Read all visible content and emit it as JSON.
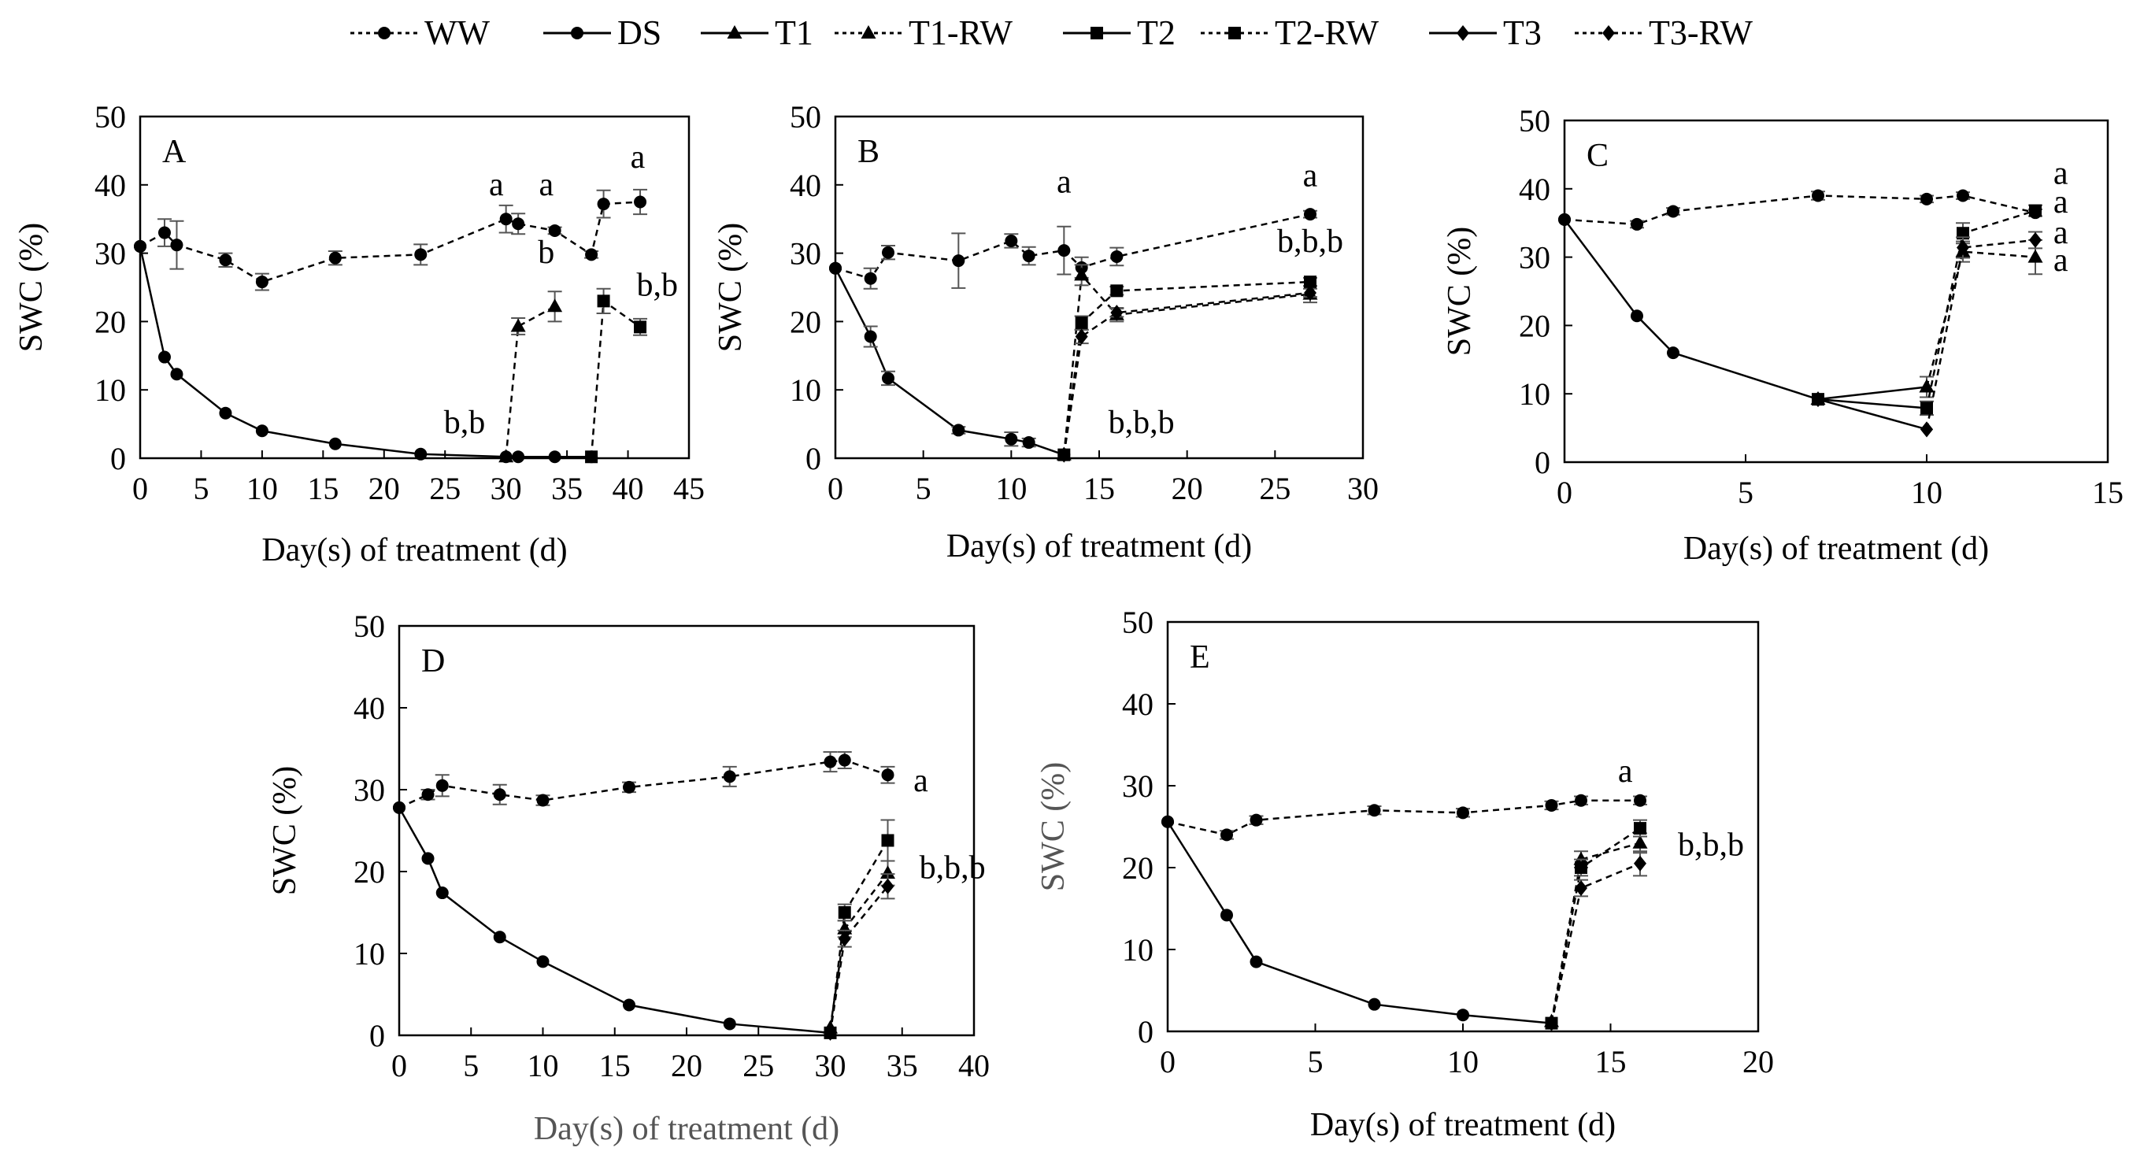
{
  "legend": [
    {
      "name": "WW",
      "style": "dashed",
      "marker": "circle"
    },
    {
      "name": "DS",
      "style": "solid",
      "marker": "circle"
    },
    {
      "name": "T1",
      "style": "solid",
      "marker": "triangle"
    },
    {
      "name": "T1-RW",
      "style": "dashed",
      "marker": "triangle"
    },
    {
      "name": "T2",
      "style": "solid",
      "marker": "square"
    },
    {
      "name": "T2-RW",
      "style": "dashed",
      "marker": "square"
    },
    {
      "name": "T3",
      "style": "solid",
      "marker": "diamond"
    },
    {
      "name": "T3-RW",
      "style": "dashed",
      "marker": "diamond"
    }
  ],
  "chart_data": [
    {
      "type": "line",
      "panel": "A",
      "xlabel": "Day(s) of treatment (d)",
      "ylabel": "SWC (%)",
      "xlim": [
        0,
        45
      ],
      "xticks": [
        0,
        5,
        10,
        15,
        20,
        25,
        30,
        35,
        40,
        45
      ],
      "ylim": [
        0,
        50
      ],
      "yticks": [
        0,
        10,
        20,
        30,
        40,
        50
      ],
      "series": [
        {
          "name": "WW",
          "style": "dashed",
          "marker": "circle",
          "points": [
            [
              0,
              31
            ],
            [
              2,
              33
            ],
            [
              3,
              31.2
            ],
            [
              7,
              29
            ],
            [
              10,
              25.8
            ],
            [
              16,
              29.3
            ],
            [
              23,
              29.8
            ],
            [
              30,
              35
            ],
            [
              31,
              34.3
            ],
            [
              34,
              33.3
            ],
            [
              37,
              29.8
            ],
            [
              38,
              37.2
            ],
            [
              41,
              37.5
            ]
          ],
          "errors": [
            0,
            2,
            3.5,
            1,
            1.2,
            1,
            1.5,
            2,
            1.5,
            0.5,
            0.5,
            2,
            1.8
          ]
        },
        {
          "name": "DS",
          "style": "solid",
          "marker": "circle",
          "points": [
            [
              0,
              31
            ],
            [
              2,
              14.8
            ],
            [
              3,
              12.3
            ],
            [
              7,
              6.6
            ],
            [
              10,
              4
            ],
            [
              16,
              2.1
            ],
            [
              23,
              0.6
            ],
            [
              30,
              0.2
            ],
            [
              31,
              0.2
            ],
            [
              34,
              0.2
            ],
            [
              37,
              0.2
            ]
          ]
        },
        {
          "name": "T1-RW",
          "style": "dashed",
          "marker": "triangle",
          "points": [
            [
              30,
              0.2
            ],
            [
              31,
              19.3
            ],
            [
              34,
              22.2
            ]
          ],
          "errors": [
            0,
            1.2,
            2.2
          ]
        },
        {
          "name": "T2-RW",
          "style": "dashed",
          "marker": "square",
          "points": [
            [
              37,
              0.2
            ],
            [
              38,
              23
            ],
            [
              41,
              19.2
            ]
          ],
          "errors": [
            0,
            1.8,
            1.2
          ]
        }
      ],
      "annotations": [
        {
          "text": "a",
          "x": 29.2,
          "y": 38.5
        },
        {
          "text": "a",
          "x": 33.3,
          "y": 38.5
        },
        {
          "text": "a",
          "x": 40.8,
          "y": 42.5
        },
        {
          "text": "b",
          "x": 33.3,
          "y": 28.6
        },
        {
          "text": "b,b",
          "x": 26.6,
          "y": 3.7
        },
        {
          "text": "b,b",
          "x": 42.4,
          "y": 23.8
        }
      ]
    },
    {
      "type": "line",
      "panel": "B",
      "xlabel": "Day(s) of treatment (d)",
      "ylabel": "SWC (%)",
      "xlim": [
        0,
        30
      ],
      "xticks": [
        0,
        5,
        10,
        15,
        20,
        25,
        30
      ],
      "ylim": [
        0,
        50
      ],
      "yticks": [
        0,
        10,
        20,
        30,
        40,
        50
      ],
      "series": [
        {
          "name": "WW",
          "style": "dashed",
          "marker": "circle",
          "points": [
            [
              0,
              27.8
            ],
            [
              2,
              26.3
            ],
            [
              3,
              30.1
            ],
            [
              7,
              28.9
            ],
            [
              10,
              31.8
            ],
            [
              11,
              29.6
            ],
            [
              13,
              30.4
            ],
            [
              14,
              27.9
            ],
            [
              16,
              29.5
            ],
            [
              27,
              35.7
            ]
          ],
          "errors": [
            0,
            1.5,
            1,
            4,
            1,
            1.3,
            3.5,
            1.5,
            1.3,
            0.5
          ]
        },
        {
          "name": "DS",
          "style": "solid",
          "marker": "circle",
          "points": [
            [
              0,
              27.8
            ],
            [
              2,
              17.8
            ],
            [
              3,
              11.7
            ],
            [
              7,
              4.1
            ],
            [
              10,
              2.8
            ],
            [
              11,
              2.3
            ],
            [
              13,
              0.5
            ]
          ],
          "errors": [
            0,
            1.5,
            1,
            0.5,
            1,
            0.6,
            0
          ]
        },
        {
          "name": "T1-RW",
          "style": "dashed",
          "marker": "triangle",
          "points": [
            [
              13,
              0.5
            ],
            [
              14,
              26.8
            ],
            [
              16,
              21
            ],
            [
              27,
              24
            ]
          ],
          "errors": [
            0,
            1.5,
            1,
            1.2
          ]
        },
        {
          "name": "T2-RW",
          "style": "dashed",
          "marker": "square",
          "points": [
            [
              13,
              0.5
            ],
            [
              14,
              19.8
            ],
            [
              16,
              24.5
            ],
            [
              27,
              25.8
            ]
          ],
          "errors": [
            0,
            1,
            0.6,
            0.6
          ]
        },
        {
          "name": "T3-RW",
          "style": "dashed",
          "marker": "diamond",
          "points": [
            [
              13,
              0.5
            ],
            [
              14,
              17.8
            ],
            [
              16,
              21.3
            ],
            [
              27,
              24.2
            ]
          ],
          "errors": [
            0,
            1,
            0.6,
            0.6
          ]
        }
      ],
      "annotations": [
        {
          "text": "a",
          "x": 13,
          "y": 38.9
        },
        {
          "text": "a",
          "x": 27,
          "y": 39.8
        },
        {
          "text": "b,b,b",
          "x": 27,
          "y": 30.2
        },
        {
          "text": "b,b,b",
          "x": 17.4,
          "y": 3.7
        }
      ]
    },
    {
      "type": "line",
      "panel": "C",
      "xlabel": "Day(s) of treatment (d)",
      "ylabel": "SWC (%)",
      "xlim": [
        0,
        15
      ],
      "xticks": [
        0,
        5,
        10,
        15
      ],
      "ylim": [
        0,
        50
      ],
      "yticks": [
        0,
        10,
        20,
        30,
        40,
        50
      ],
      "series": [
        {
          "name": "WW",
          "style": "dashed",
          "marker": "circle",
          "points": [
            [
              0,
              35.5
            ],
            [
              2,
              34.8
            ],
            [
              3,
              36.7
            ],
            [
              7,
              39
            ],
            [
              10,
              38.5
            ],
            [
              11,
              39
            ],
            [
              13,
              36.5
            ]
          ],
          "errors": [
            0,
            0.5,
            0.5,
            0.6,
            0.5,
            0.5,
            0.5
          ]
        },
        {
          "name": "DS",
          "style": "solid",
          "marker": "circle",
          "points": [
            [
              0,
              35.5
            ],
            [
              2,
              21.4
            ],
            [
              3,
              16
            ],
            [
              7,
              9.2
            ]
          ]
        },
        {
          "name": "T1",
          "style": "solid",
          "marker": "triangle",
          "points": [
            [
              7,
              9.2
            ],
            [
              10,
              11
            ]
          ],
          "errors": [
            0,
            1.5
          ]
        },
        {
          "name": "T1-RW",
          "style": "dashed",
          "marker": "triangle",
          "points": [
            [
              10,
              11
            ],
            [
              11,
              30.8
            ],
            [
              13,
              30
            ]
          ],
          "errors": [
            0,
            1.5,
            2.5
          ]
        },
        {
          "name": "T2",
          "style": "solid",
          "marker": "square",
          "points": [
            [
              7,
              9.2
            ],
            [
              10,
              7.9
            ]
          ],
          "errors": [
            0,
            1
          ]
        },
        {
          "name": "T2-RW",
          "style": "dashed",
          "marker": "square",
          "points": [
            [
              10,
              7.9
            ],
            [
              11,
              33.5
            ],
            [
              13,
              36.8
            ]
          ],
          "errors": [
            0,
            1.5,
            0.8
          ]
        },
        {
          "name": "T3",
          "style": "solid",
          "marker": "diamond",
          "points": [
            [
              7,
              9.2
            ],
            [
              10,
              4.8
            ]
          ]
        },
        {
          "name": "T3-RW",
          "style": "dashed",
          "marker": "diamond",
          "points": [
            [
              10,
              4.8
            ],
            [
              11,
              31.4
            ],
            [
              13,
              32.5
            ]
          ],
          "errors": [
            0,
            1.5,
            1.2
          ]
        }
      ],
      "annotations": [
        {
          "text": "a",
          "x": 13.7,
          "y": 40.7
        },
        {
          "text": "a",
          "x": 13.7,
          "y": 36.5
        },
        {
          "text": "a",
          "x": 13.7,
          "y": 32
        },
        {
          "text": "a",
          "x": 13.7,
          "y": 28
        }
      ]
    },
    {
      "type": "line",
      "panel": "D",
      "xlabel": "Day(s) of treatment (d)",
      "ylabel": "SWC (%)",
      "xlim": [
        0,
        40
      ],
      "xticks": [
        0,
        5,
        10,
        15,
        20,
        25,
        30,
        35,
        40
      ],
      "ylim": [
        0,
        50
      ],
      "yticks": [
        0,
        10,
        20,
        30,
        40,
        50
      ],
      "series": [
        {
          "name": "WW",
          "style": "dashed",
          "marker": "circle",
          "points": [
            [
              0,
              27.8
            ],
            [
              2,
              29.4
            ],
            [
              3,
              30.5
            ],
            [
              7,
              29.4
            ],
            [
              10,
              28.7
            ],
            [
              16,
              30.3
            ],
            [
              23,
              31.6
            ],
            [
              30,
              33.4
            ],
            [
              31,
              33.6
            ],
            [
              34,
              31.8
            ]
          ],
          "errors": [
            0,
            0.6,
            1.3,
            1.2,
            0.6,
            0.6,
            1.2,
            1.2,
            1,
            1
          ]
        },
        {
          "name": "DS",
          "style": "solid",
          "marker": "circle",
          "points": [
            [
              0,
              27.8
            ],
            [
              2,
              21.6
            ],
            [
              3,
              17.4
            ],
            [
              7,
              12
            ],
            [
              10,
              9
            ],
            [
              16,
              3.7
            ],
            [
              23,
              1.4
            ],
            [
              30,
              0.3
            ]
          ]
        },
        {
          "name": "T1-RW",
          "style": "dashed",
          "marker": "triangle",
          "points": [
            [
              30,
              0.9
            ],
            [
              31,
              13
            ],
            [
              34,
              19.8
            ]
          ],
          "errors": [
            0,
            1,
            1.5
          ]
        },
        {
          "name": "T2-RW",
          "style": "dashed",
          "marker": "square",
          "points": [
            [
              30,
              0.3
            ],
            [
              31,
              15
            ],
            [
              34,
              23.8
            ]
          ],
          "errors": [
            0,
            1,
            2.5
          ]
        },
        {
          "name": "T3-RW",
          "style": "dashed",
          "marker": "diamond",
          "points": [
            [
              30,
              0.3
            ],
            [
              31,
              11.8
            ],
            [
              34,
              18.2
            ]
          ],
          "errors": [
            0,
            1,
            1.5
          ]
        }
      ],
      "annotations": [
        {
          "text": "a",
          "x": 36.3,
          "y": 29.8
        },
        {
          "text": "b,b,b",
          "x": 38.5,
          "y": 19.2
        }
      ]
    },
    {
      "type": "line",
      "panel": "E",
      "xlabel": "Day(s) of treatment (d)",
      "ylabel": "SWC (%)",
      "xlim": [
        0,
        20
      ],
      "xticks": [
        0,
        5,
        10,
        15,
        20
      ],
      "ylim": [
        0,
        50
      ],
      "yticks": [
        0,
        10,
        20,
        30,
        40,
        50
      ],
      "series": [
        {
          "name": "WW",
          "style": "dashed",
          "marker": "circle",
          "points": [
            [
              0,
              25.6
            ],
            [
              2,
              24
            ],
            [
              3,
              25.8
            ],
            [
              7,
              27
            ],
            [
              10,
              26.7
            ],
            [
              13,
              27.6
            ],
            [
              14,
              28.2
            ],
            [
              16,
              28.2
            ]
          ],
          "errors": [
            0,
            0.5,
            0.5,
            0.5,
            0.5,
            0.5,
            0.5,
            0.5
          ]
        },
        {
          "name": "DS",
          "style": "solid",
          "marker": "circle",
          "points": [
            [
              0,
              25.6
            ],
            [
              2,
              14.2
            ],
            [
              3,
              8.5
            ],
            [
              7,
              3.3
            ],
            [
              10,
              2
            ],
            [
              13,
              1
            ]
          ]
        },
        {
          "name": "T1-RW",
          "style": "dashed",
          "marker": "triangle",
          "points": [
            [
              13,
              1.2
            ],
            [
              14,
              21
            ],
            [
              16,
              23
            ]
          ],
          "errors": [
            0,
            1,
            1.2
          ]
        },
        {
          "name": "T2-RW",
          "style": "dashed",
          "marker": "square",
          "points": [
            [
              13,
              1
            ],
            [
              14,
              20
            ],
            [
              16,
              24.8
            ]
          ],
          "errors": [
            0,
            1,
            1
          ]
        },
        {
          "name": "T3-RW",
          "style": "dashed",
          "marker": "diamond",
          "points": [
            [
              13,
              1
            ],
            [
              14,
              17.5
            ],
            [
              16,
              20.5
            ]
          ],
          "errors": [
            0,
            1,
            1.5
          ]
        }
      ],
      "annotations": [
        {
          "text": "a",
          "x": 15.5,
          "y": 30.5
        },
        {
          "text": "b,b,b",
          "x": 18.4,
          "y": 21.5
        }
      ]
    }
  ]
}
